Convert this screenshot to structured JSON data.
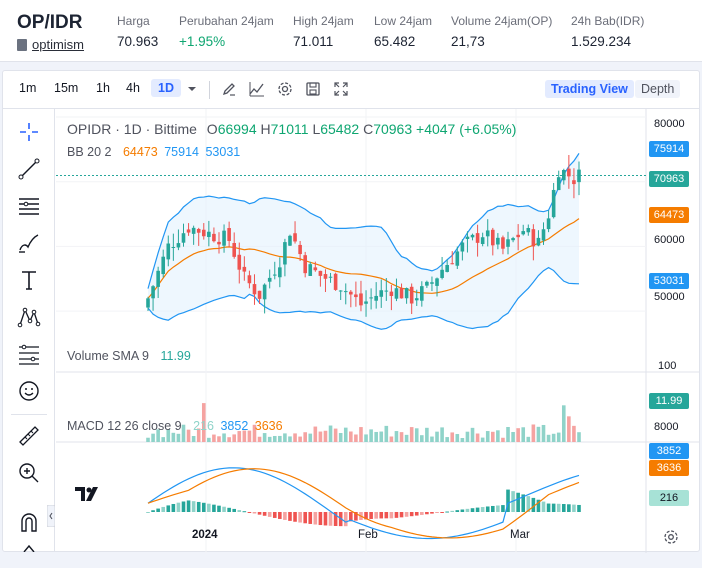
{
  "header": {
    "pair": "OP/IDR",
    "coin_link": "optimism",
    "stats": [
      {
        "label": "Harga",
        "value": "70.963",
        "color": "normal"
      },
      {
        "label": "Perubahan 24jam",
        "value": "+1.95%",
        "color": "green"
      },
      {
        "label": "High 24jam",
        "value": "71.011",
        "color": "normal"
      },
      {
        "label": "Low 24jam",
        "value": "65.482",
        "color": "normal"
      },
      {
        "label": "Volume 24jam(OP)",
        "value": "21,73",
        "color": "normal"
      },
      {
        "label": "24h Bab(IDR)",
        "value": "1.529.234",
        "color": "normal"
      }
    ]
  },
  "toolbar": {
    "timeframes": [
      "1m",
      "15m",
      "1h",
      "4h",
      "1D"
    ],
    "active_timeframe": "1D",
    "view_trading": "Trading View",
    "view_depth": "Depth"
  },
  "legend": {
    "symbol": "OPIDR · 1D · Bittime",
    "o_label": "O",
    "o": "66994",
    "h_label": "H",
    "h": "71011",
    "l_label": "L",
    "l": "65482",
    "c_label": "C",
    "c": "70963",
    "change": "+4047 (+6.05%)",
    "bb_label": "BB 20 2",
    "bb_mid": "64473",
    "bb_upper": "75914",
    "bb_lower": "53031",
    "vol_label": "Volume SMA 9",
    "vol_value": "11.99",
    "macd_label": "MACD 12 26 close 9",
    "macd_hist": "216",
    "macd_line": "3852",
    "macd_signal": "3636"
  },
  "price_axis": {
    "ticks": [
      "80000",
      "70000",
      "60000",
      "50000"
    ],
    "tag_upper": "75914",
    "tag_price": "70963",
    "tag_mid": "64473",
    "tag_lower": "53031"
  },
  "volume_axis": {
    "tick": "100",
    "tag": "11.99"
  },
  "macd_axis": {
    "tick": "8000",
    "tag_line": "3852",
    "tag_signal": "3636",
    "tag_hist": "216"
  },
  "time_axis": [
    "2024",
    "Feb",
    "Mar"
  ],
  "colors": {
    "up": "#26a69a",
    "down": "#ef5350",
    "bb_band": "#2196f3",
    "bb_basis": "#f57c00",
    "accent": "#2962ff",
    "green_text": "#0ea671"
  }
}
